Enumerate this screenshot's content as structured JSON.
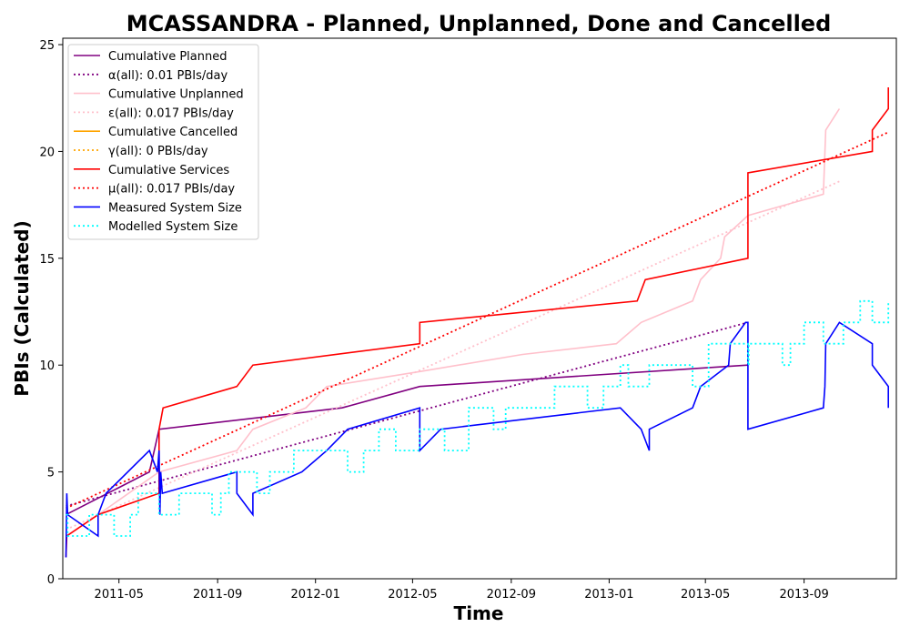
{
  "chart_data": {
    "type": "line",
    "title": "MCASSANDRA - Planned, Unplanned, Done  and Cancelled",
    "xlabel": "Time",
    "ylabel": "PBIs (Calculated)",
    "xlim": [
      "2011-02-20",
      "2013-12-25"
    ],
    "ylim": [
      0,
      25.3
    ],
    "x_ticks": [
      "2011-05",
      "2011-09",
      "2012-01",
      "2012-05",
      "2012-09",
      "2013-01",
      "2013-05",
      "2013-09"
    ],
    "y_ticks": [
      0,
      5,
      10,
      15,
      20,
      25
    ],
    "grid": false,
    "legend_position": "upper-left",
    "series": [
      {
        "name": "Cumulative Planned",
        "color": "#800080",
        "style": "solid",
        "points": [
          [
            "2011-02-24",
            3
          ],
          [
            "2011-06-08",
            5
          ],
          [
            "2011-06-20",
            7
          ],
          [
            "2012-02-03",
            8
          ],
          [
            "2012-05-10",
            9
          ],
          [
            "2013-06-23",
            10
          ]
        ]
      },
      {
        "name": "α(all): 0.01 PBIs/day",
        "color": "#800080",
        "style": "dotted",
        "points": [
          [
            "2011-02-24",
            3.4
          ],
          [
            "2013-06-23",
            12
          ]
        ]
      },
      {
        "name": "Cumulative Unplanned",
        "color": "#ffc0cb",
        "style": "solid",
        "points": [
          [
            "2011-02-24",
            2
          ],
          [
            "2011-04-05",
            3
          ],
          [
            "2011-06-20",
            5
          ],
          [
            "2011-09-25",
            6
          ],
          [
            "2011-10-15",
            7
          ],
          [
            "2011-12-20",
            8
          ],
          [
            "2012-01-15",
            9
          ],
          [
            "2012-05-10",
            9.7
          ],
          [
            "2012-09-15",
            10.5
          ],
          [
            "2013-01-10",
            11
          ],
          [
            "2013-02-10",
            12
          ],
          [
            "2013-04-15",
            13
          ],
          [
            "2013-04-25",
            14
          ],
          [
            "2013-05-20",
            15
          ],
          [
            "2013-05-25",
            16
          ],
          [
            "2013-06-23",
            17
          ],
          [
            "2013-09-25",
            18
          ],
          [
            "2013-09-28",
            21
          ],
          [
            "2013-10-15",
            22
          ]
        ]
      },
      {
        "name": "ε(all): 0.017 PBIs/day",
        "color": "#ffc0cb",
        "style": "dotted",
        "points": [
          [
            "2011-02-24",
            2.3
          ],
          [
            "2013-10-15",
            18.6
          ]
        ]
      },
      {
        "name": "Cumulative Cancelled",
        "color": "#ffa500",
        "style": "solid",
        "points": []
      },
      {
        "name": "γ(all): 0 PBIs/day",
        "color": "#ffa500",
        "style": "dotted",
        "points": []
      },
      {
        "name": "Cumulative Services",
        "color": "#ff0000",
        "style": "solid",
        "points": [
          [
            "2011-02-24",
            1
          ],
          [
            "2011-02-25",
            2
          ],
          [
            "2011-04-05",
            3
          ],
          [
            "2011-06-20",
            4
          ],
          [
            "2011-06-20",
            7
          ],
          [
            "2011-06-25",
            8
          ],
          [
            "2011-09-25",
            9
          ],
          [
            "2011-10-15",
            10
          ],
          [
            "2012-05-10",
            11
          ],
          [
            "2012-05-10",
            12
          ],
          [
            "2013-02-05",
            13
          ],
          [
            "2013-02-15",
            14
          ],
          [
            "2013-06-23",
            15
          ],
          [
            "2013-06-23",
            19
          ],
          [
            "2013-11-25",
            20
          ],
          [
            "2013-11-25",
            21
          ],
          [
            "2013-12-15",
            22
          ],
          [
            "2013-12-15",
            23
          ]
        ]
      },
      {
        "name": "μ(all): 0.017 PBIs/day",
        "color": "#ff0000",
        "style": "dotted",
        "points": [
          [
            "2011-02-24",
            3.3
          ],
          [
            "2013-12-15",
            20.9
          ]
        ]
      },
      {
        "name": "Measured System Size",
        "color": "#0000ff",
        "style": "solid",
        "points": [
          [
            "2011-02-24",
            1
          ],
          [
            "2011-02-25",
            4
          ],
          [
            "2011-02-26",
            3
          ],
          [
            "2011-04-05",
            2
          ],
          [
            "2011-04-05",
            3
          ],
          [
            "2011-04-15",
            4
          ],
          [
            "2011-06-08",
            6
          ],
          [
            "2011-06-18",
            5
          ],
          [
            "2011-06-20",
            6
          ],
          [
            "2011-06-21",
            3
          ],
          [
            "2011-06-22",
            5
          ],
          [
            "2011-06-24",
            4
          ],
          [
            "2011-09-25",
            5
          ],
          [
            "2011-09-25",
            4
          ],
          [
            "2011-10-15",
            3
          ],
          [
            "2011-10-15",
            4
          ],
          [
            "2011-12-15",
            5
          ],
          [
            "2012-01-15",
            6
          ],
          [
            "2012-02-10",
            7
          ],
          [
            "2012-05-10",
            8
          ],
          [
            "2012-05-10",
            6
          ],
          [
            "2012-06-05",
            7
          ],
          [
            "2013-01-15",
            8
          ],
          [
            "2013-02-10",
            7
          ],
          [
            "2013-02-20",
            6
          ],
          [
            "2013-02-20",
            7
          ],
          [
            "2013-04-15",
            8
          ],
          [
            "2013-04-25",
            9
          ],
          [
            "2013-05-30",
            10
          ],
          [
            "2013-06-01",
            11
          ],
          [
            "2013-06-20",
            12
          ],
          [
            "2013-06-23",
            12
          ],
          [
            "2013-06-23",
            7
          ],
          [
            "2013-09-25",
            8
          ],
          [
            "2013-09-27",
            9
          ],
          [
            "2013-09-28",
            11
          ],
          [
            "2013-10-15",
            12
          ],
          [
            "2013-11-25",
            11
          ],
          [
            "2013-11-25",
            10
          ],
          [
            "2013-12-15",
            9
          ],
          [
            "2013-12-15",
            8
          ]
        ]
      },
      {
        "name": "Modelled System Size",
        "color": "#00ffff",
        "style": "dotted",
        "step": true,
        "points": [
          [
            "2011-02-24",
            3
          ],
          [
            "2011-02-26",
            2
          ],
          [
            "2011-03-25",
            3
          ],
          [
            "2011-04-25",
            2
          ],
          [
            "2011-05-15",
            3
          ],
          [
            "2011-05-25",
            4
          ],
          [
            "2011-06-20",
            3
          ],
          [
            "2011-07-15",
            4
          ],
          [
            "2011-08-25",
            3
          ],
          [
            "2011-09-05",
            4
          ],
          [
            "2011-09-15",
            5
          ],
          [
            "2011-10-20",
            4
          ],
          [
            "2011-11-05",
            5
          ],
          [
            "2011-12-05",
            6
          ],
          [
            "2012-01-15",
            6
          ],
          [
            "2012-02-10",
            5
          ],
          [
            "2012-03-01",
            6
          ],
          [
            "2012-03-20",
            7
          ],
          [
            "2012-04-10",
            6
          ],
          [
            "2012-05-10",
            7
          ],
          [
            "2012-06-10",
            6
          ],
          [
            "2012-07-10",
            8
          ],
          [
            "2012-08-10",
            7
          ],
          [
            "2012-08-25",
            8
          ],
          [
            "2012-10-25",
            9
          ],
          [
            "2012-12-05",
            8
          ],
          [
            "2012-12-25",
            9
          ],
          [
            "2013-01-15",
            10
          ],
          [
            "2013-01-25",
            9
          ],
          [
            "2013-02-20",
            10
          ],
          [
            "2013-04-15",
            9
          ],
          [
            "2013-05-05",
            11
          ],
          [
            "2013-06-23",
            10
          ],
          [
            "2013-06-24",
            11
          ],
          [
            "2013-08-05",
            10
          ],
          [
            "2013-08-15",
            11
          ],
          [
            "2013-09-01",
            12
          ],
          [
            "2013-09-25",
            11
          ],
          [
            "2013-10-20",
            12
          ],
          [
            "2013-11-10",
            13
          ],
          [
            "2013-11-25",
            12
          ],
          [
            "2013-12-15",
            13
          ]
        ]
      }
    ]
  }
}
